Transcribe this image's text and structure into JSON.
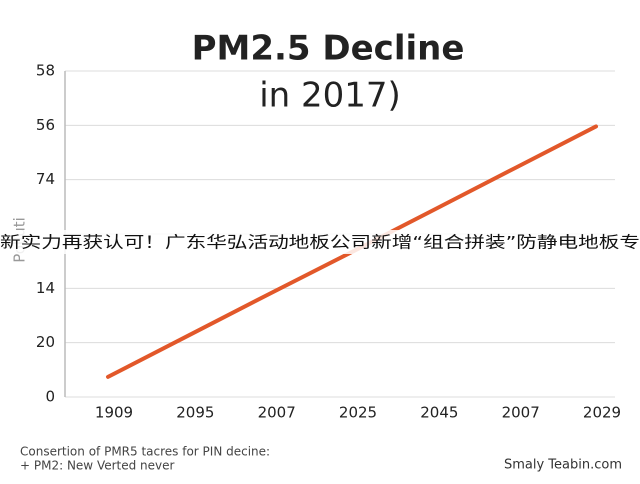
{
  "chart_data": {
    "type": "line",
    "title": "PM2.5 Decline",
    "title_line2": "in 2017)",
    "y_label": "Polluti",
    "categories": [
      "1909",
      "2095",
      "2007",
      "2025",
      "2045",
      "2007",
      "2029"
    ],
    "series": [
      {
        "name": "PM2.5",
        "color": "#e2582a",
        "values": [
          0.37,
          1.14,
          1.91,
          2.67,
          3.44,
          4.21,
          4.98
        ]
      }
    ],
    "ylim": [
      0,
      6
    ],
    "yticks": [
      {
        "value": 0,
        "label": "0"
      },
      {
        "value": 1,
        "label": "20"
      },
      {
        "value": 2,
        "label": "14"
      },
      {
        "value": 3,
        "label": ""
      },
      {
        "value": 4,
        "label": "74"
      },
      {
        "value": 5,
        "label": "56"
      },
      {
        "value": 6,
        "label": "58"
      }
    ],
    "grid": true,
    "banner": "新实力再获认可！广东华弘活动地板公司新增“组合拼装”防静电地板专",
    "footnote_1": "Consertion of PMR5 tacres for PIN decine:",
    "footnote_2": "+ PM2: New Verted never",
    "source": "Smaly Teabin.com"
  }
}
